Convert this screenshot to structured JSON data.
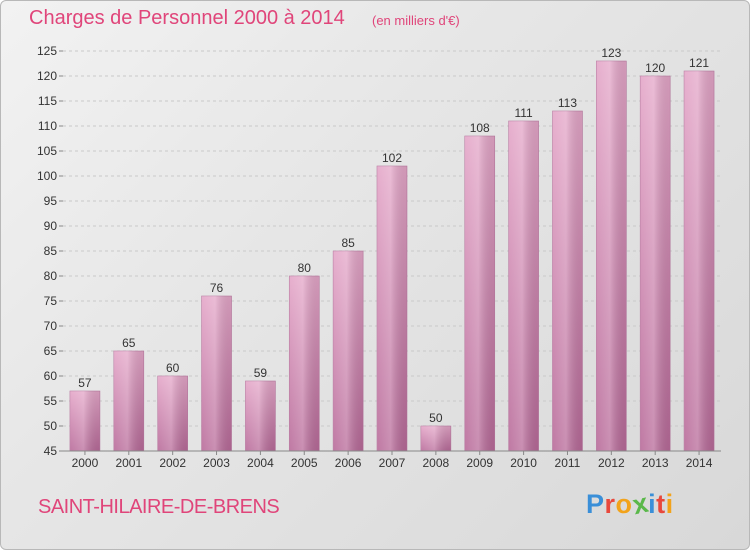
{
  "header": {
    "title": "Charges de Personnel 2000 à 2014",
    "subtitle": "(en milliers d'€)"
  },
  "footer": {
    "commune": "SAINT-HILAIRE-DE-BRENS",
    "logo": "Proxiti",
    "logo_colors": [
      "#3a8fd8",
      "#e8483c",
      "#f2a31b",
      "#5ab84a",
      "#3a8fd8",
      "#e8483c",
      "#f2a31b"
    ]
  },
  "colors": {
    "title": "#e0457a",
    "bar_top": "#e4a6c8",
    "bar_bottom": "#b86a99",
    "grid": "#c9c9c9",
    "axis_text": "#333333"
  },
  "chart_data": {
    "type": "bar",
    "title": "Charges de Personnel 2000 à 2014",
    "subtitle": "(en milliers d'€)",
    "categories": [
      "2000",
      "2001",
      "2002",
      "2003",
      "2004",
      "2005",
      "2006",
      "2007",
      "2008",
      "2009",
      "2010",
      "2011",
      "2012",
      "2013",
      "2014"
    ],
    "values": [
      57,
      65,
      60,
      76,
      59,
      80,
      85,
      102,
      50,
      108,
      111,
      113,
      123,
      120,
      121
    ],
    "ylim": [
      45,
      125
    ],
    "yticks": [
      45,
      50,
      55,
      60,
      65,
      70,
      75,
      80,
      85,
      90,
      95,
      100,
      105,
      110,
      115,
      120,
      125
    ],
    "grid": true,
    "data_labels": true
  }
}
